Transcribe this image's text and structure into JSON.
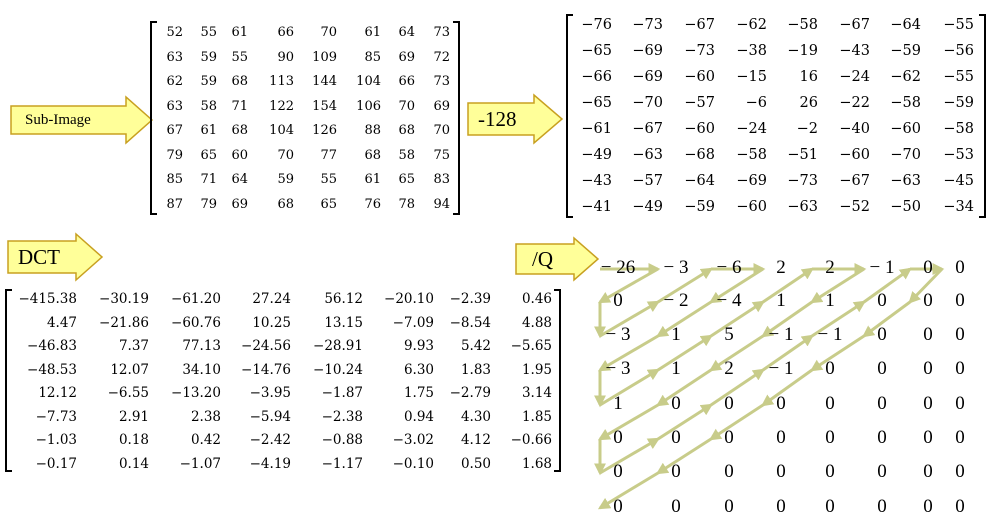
{
  "arrows": {
    "sub_image": "Sub-Image",
    "minus_128": "-128",
    "dct": "DCT",
    "divide_q": "/Q"
  },
  "colors": {
    "arrow_fill": "#ffff99",
    "arrow_stroke": "#c8a020",
    "zigzag": "#c8cc8a"
  },
  "sub_image_matrix": [
    [
      "52",
      "55",
      "61",
      "66",
      "70",
      "61",
      "64",
      "73"
    ],
    [
      "63",
      "59",
      "55",
      "90",
      "109",
      "85",
      "69",
      "72"
    ],
    [
      "62",
      "59",
      "68",
      "113",
      "144",
      "104",
      "66",
      "73"
    ],
    [
      "63",
      "58",
      "71",
      "122",
      "154",
      "106",
      "70",
      "69"
    ],
    [
      "67",
      "61",
      "68",
      "104",
      "126",
      "88",
      "68",
      "70"
    ],
    [
      "79",
      "65",
      "60",
      "70",
      "77",
      "68",
      "58",
      "75"
    ],
    [
      "85",
      "71",
      "64",
      "59",
      "55",
      "61",
      "65",
      "83"
    ],
    [
      "87",
      "79",
      "69",
      "68",
      "65",
      "76",
      "78",
      "94"
    ]
  ],
  "shifted_matrix": [
    [
      "−76",
      "−73",
      "−67",
      "−62",
      "−58",
      "−67",
      "−64",
      "−55"
    ],
    [
      "−65",
      "−69",
      "−73",
      "−38",
      "−19",
      "−43",
      "−59",
      "−56"
    ],
    [
      "−66",
      "−69",
      "−60",
      "−15",
      "16",
      "−24",
      "−62",
      "−55"
    ],
    [
      "−65",
      "−70",
      "−57",
      "−6",
      "26",
      "−22",
      "−58",
      "−59"
    ],
    [
      "−61",
      "−67",
      "−60",
      "−24",
      "−2",
      "−40",
      "−60",
      "−58"
    ],
    [
      "−49",
      "−63",
      "−68",
      "−58",
      "−51",
      "−60",
      "−70",
      "−53"
    ],
    [
      "−43",
      "−57",
      "−64",
      "−69",
      "−73",
      "−67",
      "−63",
      "−45"
    ],
    [
      "−41",
      "−49",
      "−59",
      "−60",
      "−63",
      "−52",
      "−50",
      "−34"
    ]
  ],
  "dct_matrix": [
    [
      "−415.38",
      "−30.19",
      "−61.20",
      "27.24",
      "56.12",
      "−20.10",
      "−2.39",
      "0.46"
    ],
    [
      "4.47",
      "−21.86",
      "−60.76",
      "10.25",
      "13.15",
      "−7.09",
      "−8.54",
      "4.88"
    ],
    [
      "−46.83",
      "7.37",
      "77.13",
      "−24.56",
      "−28.91",
      "9.93",
      "5.42",
      "−5.65"
    ],
    [
      "−48.53",
      "12.07",
      "34.10",
      "−14.76",
      "−10.24",
      "6.30",
      "1.83",
      "1.95"
    ],
    [
      "12.12",
      "−6.55",
      "−13.20",
      "−3.95",
      "−1.87",
      "1.75",
      "−2.79",
      "3.14"
    ],
    [
      "−7.73",
      "2.91",
      "2.38",
      "−5.94",
      "−2.38",
      "0.94",
      "4.30",
      "1.85"
    ],
    [
      "−1.03",
      "0.18",
      "0.42",
      "−2.42",
      "−0.88",
      "−3.02",
      "4.12",
      "−0.66"
    ],
    [
      "−0.17",
      "0.14",
      "−1.07",
      "−4.19",
      "−1.17",
      "−0.10",
      "0.50",
      "1.68"
    ]
  ],
  "quantized_matrix": [
    [
      "− 26",
      "− 3",
      "− 6",
      "2",
      "2",
      "− 1",
      "0",
      "0"
    ],
    [
      "0",
      "− 2",
      "− 4",
      "1",
      "1",
      "0",
      "0",
      "0"
    ],
    [
      "− 3",
      "1",
      "5",
      "− 1",
      "− 1",
      "0",
      "0",
      "0"
    ],
    [
      "− 3",
      "1",
      "2",
      "− 1",
      "0",
      "0",
      "0",
      "0"
    ],
    [
      "1",
      "0",
      "0",
      "0",
      "0",
      "0",
      "0",
      "0"
    ],
    [
      "0",
      "0",
      "0",
      "0",
      "0",
      "0",
      "0",
      "0"
    ],
    [
      "0",
      "0",
      "0",
      "0",
      "0",
      "0",
      "0",
      "0"
    ],
    [
      "0",
      "0",
      "0",
      "0",
      "0",
      "0",
      "0",
      "0"
    ]
  ]
}
